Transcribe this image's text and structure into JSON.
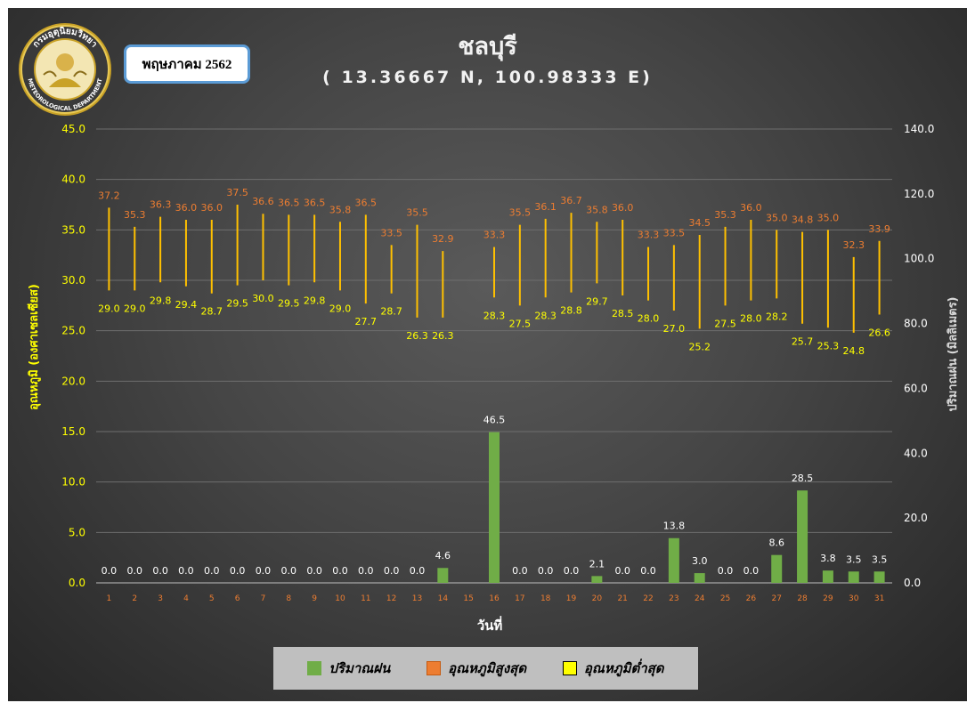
{
  "badge": "พฤษภาคม 2562",
  "logo_text": {
    "top": "กรมอุตุนิยมวิทยา",
    "bottom": "METEOROLOGICAL DEPARTMENT"
  },
  "chart_data": {
    "type": "bar+range",
    "title": "ชลบุรี",
    "subtitle": "( 13.36667 N, 100.98333 E)",
    "xlabel": "วันที่",
    "ylabel_left": "อุณหภูมิ (องศาเซลเซียส)",
    "ylabel_right": "ปริมาณฝน (มิลลิเมตร)",
    "ylim_left": [
      0,
      45
    ],
    "yticks_left": [
      "0.0",
      "5.0",
      "10.0",
      "15.0",
      "20.0",
      "25.0",
      "30.0",
      "35.0",
      "40.0",
      "45.0"
    ],
    "ylim_right": [
      0,
      140
    ],
    "yticks_right": [
      "0.0",
      "20.0",
      "40.0",
      "60.0",
      "80.0",
      "100.0",
      "120.0",
      "140.0"
    ],
    "grid": true,
    "legend_position": "bottom",
    "days": [
      1,
      2,
      3,
      4,
      5,
      6,
      7,
      8,
      9,
      10,
      11,
      12,
      13,
      14,
      15,
      16,
      17,
      18,
      19,
      20,
      21,
      22,
      23,
      24,
      25,
      26,
      27,
      28,
      29,
      30,
      31
    ],
    "series": [
      {
        "name": "ปริมาณฝน",
        "axis": "right",
        "color": "#70ad47",
        "values": [
          0.0,
          0.0,
          0.0,
          0.0,
          0.0,
          0.0,
          0.0,
          0.0,
          0.0,
          0.0,
          0.0,
          0.0,
          0.0,
          4.6,
          null,
          46.5,
          0.0,
          0.0,
          0.0,
          2.1,
          0.0,
          0.0,
          13.8,
          3.0,
          0.0,
          0.0,
          8.6,
          28.5,
          3.8,
          3.5,
          3.5
        ]
      },
      {
        "name": "อุณหภูมิสูงสุด",
        "axis": "left",
        "color": "#ed7d31",
        "values": [
          37.2,
          35.3,
          36.3,
          36.0,
          36.0,
          37.5,
          36.6,
          36.5,
          36.5,
          35.8,
          36.5,
          33.5,
          35.5,
          32.9,
          null,
          33.3,
          35.5,
          36.1,
          36.7,
          35.8,
          36.0,
          33.3,
          33.5,
          34.5,
          35.3,
          36.0,
          35.0,
          34.8,
          35.0,
          32.3,
          33.9
        ]
      },
      {
        "name": "อุณหภูมิต่ำสุด",
        "axis": "left",
        "color": "#ffff00",
        "values": [
          29.0,
          29.0,
          29.8,
          29.4,
          28.7,
          29.5,
          30.0,
          29.5,
          29.8,
          29.0,
          27.7,
          28.7,
          26.3,
          26.3,
          null,
          28.3,
          27.5,
          28.3,
          28.8,
          29.7,
          28.5,
          28.0,
          27.0,
          25.2,
          27.5,
          28.0,
          28.2,
          25.7,
          25.3,
          24.8,
          26.6
        ]
      }
    ],
    "range_bar_color": "#ffc000"
  }
}
